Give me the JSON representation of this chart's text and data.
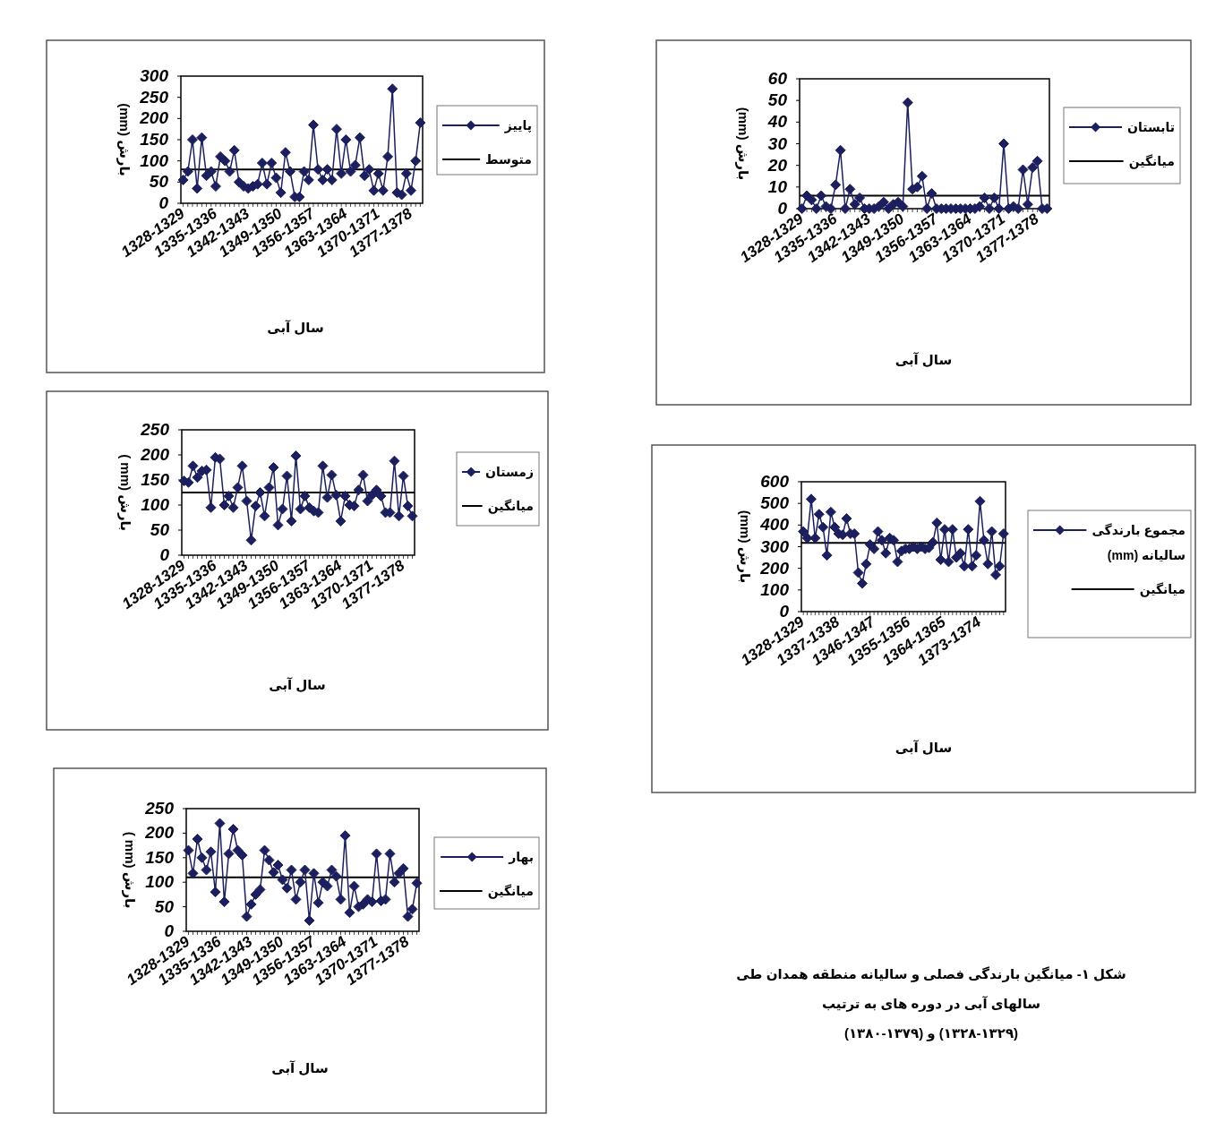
{
  "chart_data": [
    {
      "type": "line",
      "ylabel": "بارش (mm)",
      "xlabel": "سال آبی",
      "legend": "right",
      "marker": "diamond",
      "line_style": "solid",
      "ylim": [
        0,
        300
      ],
      "yticks": [
        0,
        50,
        100,
        150,
        200,
        250,
        300
      ],
      "categories": [
        "1328-1329",
        null,
        null,
        null,
        null,
        null,
        null,
        "1335-1336",
        null,
        null,
        null,
        null,
        null,
        null,
        "1342-1343",
        null,
        null,
        null,
        null,
        null,
        null,
        "1349-1350",
        null,
        null,
        null,
        null,
        null,
        null,
        "1356-1357",
        null,
        null,
        null,
        null,
        null,
        null,
        "1363-1364",
        null,
        null,
        null,
        null,
        null,
        null,
        "1370-1371",
        null,
        null,
        null,
        null,
        null,
        null,
        "1377-1378",
        null,
        null
      ],
      "series": [
        {
          "name": "پاییز",
          "color": "#1c1f5e",
          "values": [
            55,
            75,
            150,
            35,
            155,
            65,
            75,
            40,
            110,
            100,
            75,
            125,
            50,
            40,
            35,
            40,
            45,
            95,
            45,
            95,
            60,
            25,
            120,
            75,
            15,
            15,
            75,
            55,
            185,
            80,
            55,
            80,
            55,
            175,
            70,
            150,
            75,
            90,
            155,
            65,
            80,
            30,
            70,
            30,
            110,
            270,
            25,
            20,
            70,
            30,
            100,
            190
          ]
        }
      ],
      "ref_lines": [
        {
          "axis": "y",
          "value": 80,
          "label": "متوسط",
          "color": "#000000"
        }
      ]
    },
    {
      "type": "line",
      "ylabel": "بارش (mm)",
      "xlabel": "سال آبی",
      "legend": "right",
      "marker": "diamond",
      "line_style": "solid",
      "ylim": [
        0,
        60
      ],
      "yticks": [
        0,
        10,
        20,
        30,
        40,
        50,
        60
      ],
      "categories": [
        "1328-1329",
        null,
        null,
        null,
        null,
        null,
        null,
        "1335-1336",
        null,
        null,
        null,
        null,
        null,
        null,
        "1342-1343",
        null,
        null,
        null,
        null,
        null,
        null,
        "1349-1350",
        null,
        null,
        null,
        null,
        null,
        null,
        "1356-1357",
        null,
        null,
        null,
        null,
        null,
        null,
        "1363-1364",
        null,
        null,
        null,
        null,
        null,
        null,
        "1370-1371",
        null,
        null,
        null,
        null,
        null,
        null,
        "1377-1378",
        null,
        null
      ],
      "series": [
        {
          "name": "تابستان",
          "color": "#1c1f5e",
          "values": [
            0,
            6,
            4,
            0,
            6,
            1,
            0,
            11,
            27,
            0,
            9,
            2,
            5,
            0,
            0,
            0,
            1,
            3,
            0,
            2,
            3,
            1,
            49,
            9,
            10,
            15,
            0,
            7,
            0,
            0,
            0,
            0,
            0,
            0,
            0,
            0,
            0,
            1,
            5,
            0,
            5,
            0,
            30,
            0,
            1,
            0,
            18,
            2,
            19,
            22,
            0,
            0
          ]
        }
      ],
      "ref_lines": [
        {
          "axis": "y",
          "value": 6,
          "label": "میانگین",
          "color": "#000000"
        }
      ]
    },
    {
      "type": "line",
      "ylabel": "بارش (mm )",
      "xlabel": "سال آبی",
      "legend": "right",
      "marker": "diamond",
      "line_style": "solid",
      "ylim": [
        0,
        250
      ],
      "yticks": [
        0,
        50,
        100,
        150,
        200,
        250
      ],
      "categories": [
        "1328-1329",
        null,
        null,
        null,
        null,
        null,
        null,
        "1335-1336",
        null,
        null,
        null,
        null,
        null,
        null,
        "1342-1343",
        null,
        null,
        null,
        null,
        null,
        null,
        "1349-1350",
        null,
        null,
        null,
        null,
        null,
        null,
        "1356-1357",
        null,
        null,
        null,
        null,
        null,
        null,
        "1363-1364",
        null,
        null,
        null,
        null,
        null,
        null,
        "1370-1371",
        null,
        null,
        null,
        null,
        null,
        null,
        "1377-1378",
        null,
        null
      ],
      "series": [
        {
          "name": "زمستان",
          "color": "#1c1f5e",
          "values": [
            148,
            145,
            178,
            155,
            168,
            170,
            95,
            195,
            192,
            100,
            118,
            95,
            135,
            178,
            108,
            30,
            98,
            125,
            78,
            135,
            175,
            60,
            92,
            158,
            68,
            198,
            92,
            118,
            95,
            88,
            85,
            178,
            115,
            160,
            120,
            68,
            118,
            100,
            98,
            130,
            160,
            108,
            120,
            130,
            118,
            85,
            85,
            188,
            78,
            158,
            98,
            78
          ]
        }
      ],
      "ref_lines": [
        {
          "axis": "y",
          "value": 125,
          "label": "میانگین",
          "color": "#000000"
        }
      ]
    },
    {
      "type": "line",
      "ylabel": "بارش (mm)",
      "xlabel": "سال آبی",
      "legend": "right",
      "marker": "diamond",
      "line_style": "solid",
      "ylim": [
        0,
        600
      ],
      "yticks": [
        0,
        100,
        200,
        300,
        400,
        500,
        600
      ],
      "categories": [
        "1328-1329",
        null,
        null,
        null,
        null,
        null,
        null,
        null,
        null,
        "1337-1338",
        null,
        null,
        null,
        null,
        null,
        null,
        null,
        null,
        "1346-1347",
        null,
        null,
        null,
        null,
        null,
        null,
        null,
        null,
        "1355-1356",
        null,
        null,
        null,
        null,
        null,
        null,
        null,
        null,
        "1364-1365",
        null,
        null,
        null,
        null,
        null,
        null,
        null,
        null,
        "1373-1374",
        null,
        null,
        null,
        null,
        null,
        null
      ],
      "series": [
        {
          "name": "مجموع بارندگی سالیانه (mm)",
          "color": "#1c1f5e",
          "values": [
            370,
            340,
            520,
            340,
            450,
            390,
            260,
            460,
            390,
            360,
            355,
            430,
            360,
            360,
            180,
            130,
            220,
            310,
            290,
            370,
            330,
            270,
            340,
            330,
            230,
            280,
            290,
            290,
            300,
            290,
            300,
            290,
            295,
            320,
            410,
            240,
            380,
            230,
            380,
            250,
            270,
            210,
            380,
            210,
            260,
            510,
            330,
            220,
            370,
            170,
            210,
            360
          ]
        }
      ],
      "ref_lines": [
        {
          "axis": "y",
          "value": 318,
          "label": "میانگین",
          "color": "#000000"
        }
      ],
      "annotations": [
        "شکل ۱- میانگین بارندگی فصلی و سالیانه منطقه همدان طی",
        "سالهای  آبی در دوره های به ترتیب",
        "(۱۳۲۸-۱۳۲۹) و (۱۳۷۹-۱۳۸۰)"
      ]
    },
    {
      "type": "line",
      "ylabel": "بارش (mm )",
      "xlabel": "سال آبی",
      "legend": "right",
      "marker": "diamond",
      "line_style": "solid",
      "ylim": [
        0,
        250
      ],
      "yticks": [
        0,
        50,
        100,
        150,
        200,
        250
      ],
      "categories": [
        "1328-1329",
        null,
        null,
        null,
        null,
        null,
        null,
        "1335-1336",
        null,
        null,
        null,
        null,
        null,
        null,
        "1342-1343",
        null,
        null,
        null,
        null,
        null,
        null,
        "1349-1350",
        null,
        null,
        null,
        null,
        null,
        null,
        "1356-1357",
        null,
        null,
        null,
        null,
        null,
        null,
        "1363-1364",
        null,
        null,
        null,
        null,
        null,
        null,
        "1370-1371",
        null,
        null,
        null,
        null,
        null,
        null,
        "1377-1378",
        null,
        null
      ],
      "series": [
        {
          "name": "بهار",
          "color": "#1c1f5e",
          "values": [
            165,
            118,
            188,
            150,
            125,
            162,
            80,
            220,
            60,
            158,
            208,
            165,
            155,
            30,
            55,
            75,
            85,
            165,
            145,
            120,
            135,
            105,
            88,
            125,
            65,
            100,
            125,
            22,
            118,
            58,
            100,
            92,
            125,
            112,
            65,
            195,
            38,
            92,
            50,
            55,
            65,
            60,
            158,
            62,
            65,
            158,
            100,
            118,
            128,
            30,
            45,
            98
          ]
        }
      ],
      "ref_lines": [
        {
          "axis": "y",
          "value": 110,
          "label": "میانگین",
          "color": "#000000"
        }
      ]
    }
  ]
}
